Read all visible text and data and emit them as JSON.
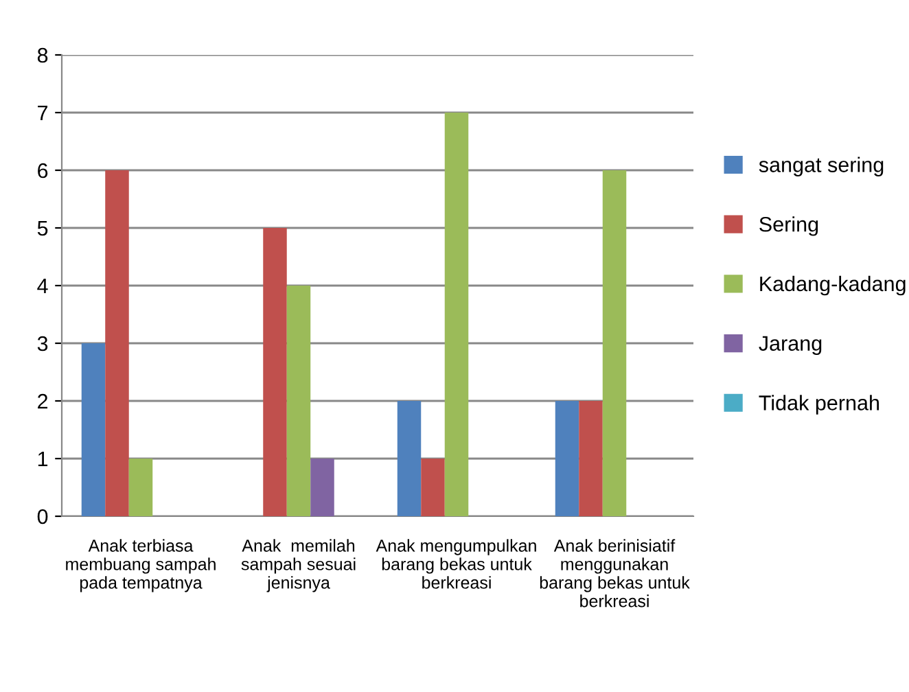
{
  "chart_data": {
    "type": "bar",
    "categories": [
      "Anak terbiasa\nmembuang sampah\npada tempatnya",
      "Anak  memilah\nsampah sesuai\njenisnya",
      "Anak mengumpulkan\nbarang bekas untuk\nberkreasi",
      "Anak berinisiatif\nmenggunakan\nbarang bekas untuk\nberkreasi"
    ],
    "series": [
      {
        "name": "sangat sering",
        "color": "#4f81bd",
        "values": [
          3,
          0,
          2,
          2
        ]
      },
      {
        "name": "Sering",
        "color": "#c0504d",
        "values": [
          6,
          5,
          1,
          2
        ]
      },
      {
        "name": "Kadang-kadang",
        "color": "#9bbb59",
        "values": [
          1,
          4,
          7,
          6
        ]
      },
      {
        "name": "Jarang",
        "color": "#8064a2",
        "values": [
          0,
          1,
          0,
          0
        ]
      },
      {
        "name": "Tidak pernah",
        "color": "#4bacc6",
        "values": [
          0,
          0,
          0,
          0
        ]
      }
    ],
    "ylim": [
      0,
      8
    ],
    "yticks": [
      0,
      1,
      2,
      3,
      4,
      5,
      6,
      7,
      8
    ],
    "grid": "y",
    "legend": "right"
  }
}
